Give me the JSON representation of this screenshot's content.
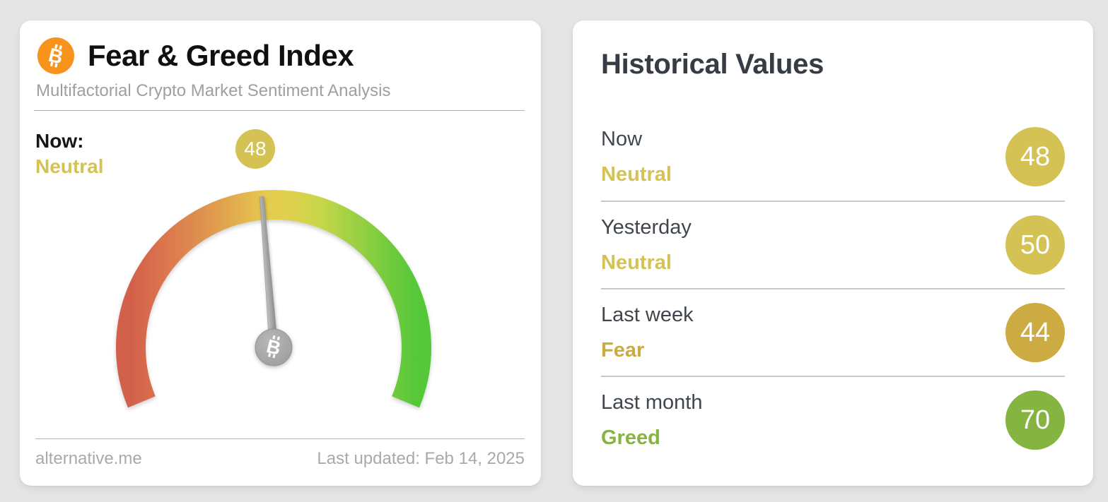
{
  "page": {
    "background_color": "#e5e5e5"
  },
  "fear_greed_card": {
    "title": "Fear & Greed Index",
    "subtitle": "Multifactorial Crypto Market Sentiment Analysis",
    "now_label": "Now:",
    "now_classification": "Neutral",
    "now_value": 48,
    "accent_color": "#d4c255",
    "footer": {
      "source": "alternative.me",
      "last_updated": "Last updated: Feb 14, 2025"
    }
  },
  "historical_card": {
    "title": "Historical Values",
    "rows": [
      {
        "period": "Now",
        "classification": "Neutral",
        "value": 48,
        "accent_color": "#d4c255"
      },
      {
        "period": "Yesterday",
        "classification": "Neutral",
        "value": 50,
        "accent_color": "#d4c255"
      },
      {
        "period": "Last week",
        "classification": "Fear",
        "value": 44,
        "accent_color": "#cdab43"
      },
      {
        "period": "Last month",
        "classification": "Greed",
        "value": 70,
        "accent_color": "#85b440"
      }
    ]
  },
  "chart_data": {
    "type": "gauge",
    "title": "Fear & Greed Index",
    "value": 48,
    "classification": "Neutral",
    "min": 0,
    "max": 100,
    "arc_span_degrees": 225,
    "color_scale_left_to_right": [
      "#d2604b",
      "#dd8b4e",
      "#e5cb50",
      "#c8d649",
      "#55c839"
    ],
    "needle_color": "#9c9c9c",
    "historical": [
      {
        "period": "Now",
        "value": 48,
        "classification": "Neutral"
      },
      {
        "period": "Yesterday",
        "value": 50,
        "classification": "Neutral"
      },
      {
        "period": "Last week",
        "value": 44,
        "classification": "Fear"
      },
      {
        "period": "Last month",
        "value": 70,
        "classification": "Greed"
      }
    ]
  }
}
